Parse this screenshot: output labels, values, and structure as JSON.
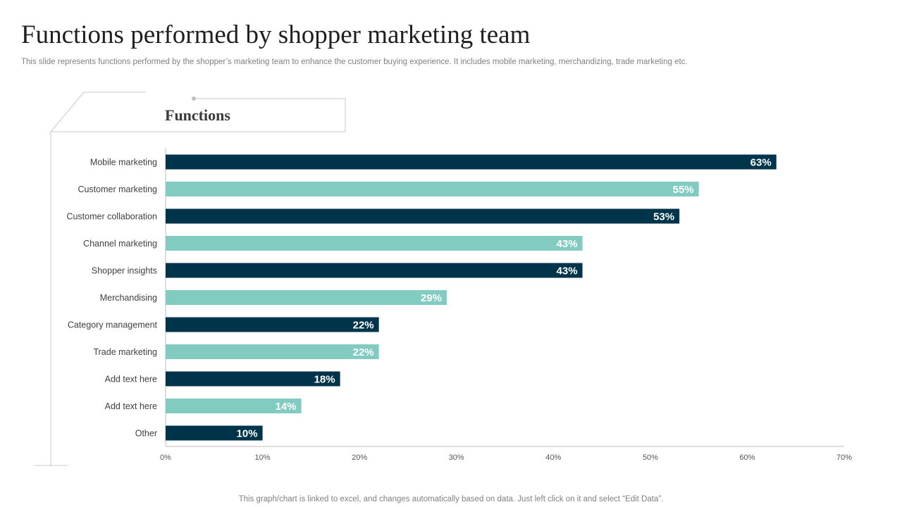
{
  "header": {
    "title": "Functions performed by shopper marketing team",
    "subtitle": "This slide represents functions performed by the shopper’s marketing team to enhance the customer buying experience. It includes mobile marketing, merchandizing, trade marketing etc."
  },
  "section": {
    "title": "Functions"
  },
  "footer": {
    "note": "This graph/chart is linked to excel,  and changes automatically based on data. Just left click on it and select “Edit Data”."
  },
  "colors": {
    "dark": "#00344b",
    "light": "#82cbc1",
    "axis": "#bfbfbf",
    "frame": "#c8c8c8"
  },
  "chart_data": {
    "type": "bar",
    "orientation": "horizontal",
    "title": "Functions",
    "xlabel": "",
    "ylabel": "",
    "xlim": [
      0,
      70
    ],
    "xticks": [
      0,
      10,
      20,
      30,
      40,
      50,
      60,
      70
    ],
    "tick_format": "percent",
    "grid": false,
    "categories": [
      "Mobile marketing",
      "Customer marketing",
      "Customer collaboration",
      "Channel marketing",
      "Shopper insights",
      "Merchandising",
      "Category management",
      "Trade marketing",
      "Add text here",
      "Add text here",
      "Other"
    ],
    "values": [
      63,
      55,
      53,
      43,
      43,
      29,
      22,
      22,
      18,
      14,
      10
    ],
    "value_labels": [
      "63%",
      "55%",
      "53%",
      "43%",
      "43%",
      "29%",
      "22%",
      "22%",
      "18%",
      "14%",
      "10%"
    ],
    "bar_colors": [
      "dark",
      "light",
      "dark",
      "light",
      "dark",
      "light",
      "dark",
      "light",
      "dark",
      "light",
      "dark"
    ]
  }
}
